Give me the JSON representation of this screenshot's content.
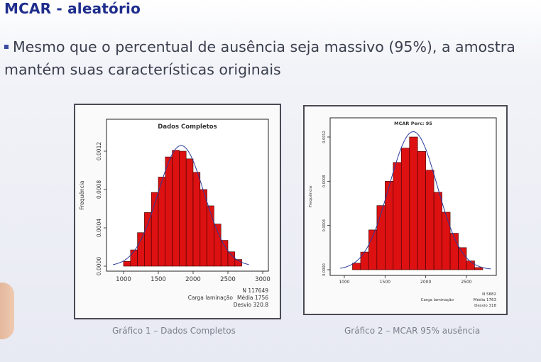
{
  "slide": {
    "title": "MCAR - aleatório",
    "bullet": "Mesmo que o percentual de ausência seja massivo (95%), a amostra mantém suas características originais"
  },
  "chart_data": [
    {
      "type": "bar",
      "title": "Dados Completos",
      "xlabel": "Carga laminação",
      "ylabel": "Frequência",
      "xlim": [
        1000,
        3000
      ],
      "ylim": [
        0,
        0.0012
      ],
      "xticks": [
        "1000",
        "1500",
        "2000",
        "2500",
        "3000"
      ],
      "yticks": [
        "0.0000",
        "0.0004",
        "0.0008",
        "0.0012"
      ],
      "bin_edges": [
        1000,
        1100,
        1200,
        1300,
        1400,
        1500,
        1600,
        1700,
        1800,
        1900,
        2000,
        2100,
        2200,
        2300,
        2400,
        2500,
        2600,
        2700
      ],
      "values": [
        5e-05,
        0.00017,
        0.00035,
        0.00056,
        0.00077,
        0.00093,
        0.00114,
        0.00121,
        0.0012,
        0.00112,
        0.00098,
        0.0008,
        0.00063,
        0.00044,
        0.00027,
        0.00015,
        7e-05
      ],
      "stats": [
        "N 117649",
        "Média 1756",
        "Desvio 320.8"
      ],
      "caption": "Gráfico 1 – Dados Completos"
    },
    {
      "type": "bar",
      "title": "MCAR Perc: 95",
      "xlabel": "Carga laminação",
      "ylabel": "Frequência",
      "xlim": [
        1000,
        2500
      ],
      "ylim": [
        0,
        0.0012
      ],
      "xticks": [
        "1000",
        "1500",
        "2000",
        "2500"
      ],
      "yticks": [
        "0.0000",
        "0.0004",
        "0.0008",
        "0.0012"
      ],
      "bin_edges": [
        1100,
        1200,
        1300,
        1400,
        1500,
        1600,
        1700,
        1800,
        1900,
        2000,
        2100,
        2200,
        2300,
        2400,
        2500,
        2600,
        2700
      ],
      "values": [
        6e-05,
        0.00016,
        0.00036,
        0.00058,
        0.0008,
        0.00097,
        0.0011,
        0.0012,
        0.00107,
        0.0009,
        0.0007,
        0.00052,
        0.00033,
        0.0002,
        8e-05,
        2e-05
      ],
      "stats": [
        "N 5882",
        "Média 1763",
        "Desvio 318"
      ],
      "caption": "Gráfico 2 – MCAR 95% ausência"
    }
  ]
}
